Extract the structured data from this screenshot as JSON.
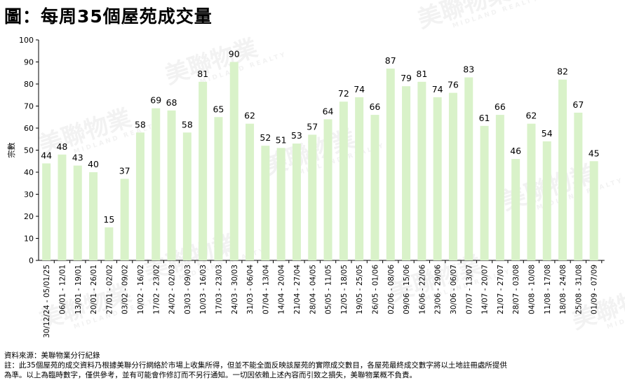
{
  "title": "圖：每周35個屋苑成交量",
  "watermark_text": "美聯物業",
  "watermark_subtext": "MIDLAND REALTY",
  "footer": {
    "source": "資料來源：美聯物業分行紀錄",
    "note_line1": "註：此35個屋苑的成交資料乃根據美聯分行網絡於市場上收集所得，但並不能全面反映該屋苑的實際成交數目，各屋苑最終成交數字將以土地註冊處所提供",
    "note_line2": "為準。以上為臨時數字，僅供參考，並有可能會作修訂而不另行通知。一切因依賴上述內容而引致之損失，美聯物業概不負責。"
  },
  "chart_data": {
    "type": "bar",
    "ylabel": "宗數",
    "xlabel": "",
    "ylim": [
      0,
      100
    ],
    "yticks": [
      0,
      10,
      20,
      30,
      40,
      50,
      60,
      70,
      80,
      90,
      100
    ],
    "bar_color": "#d9f2c9",
    "grid": false,
    "categories": [
      "30/12/24 - 05/01/25",
      "06/01 - 12/01",
      "13/01 - 19/01",
      "20/01 - 26/01",
      "27/01 - 02/02",
      "03/02 - 09/02",
      "10/02 - 16/02",
      "17/02 - 23/02",
      "24/02 - 02/03",
      "03/03 - 09/03",
      "10/03 - 16/03",
      "17/03 - 23/03",
      "24/03 - 30/03",
      "31/03 - 06/04",
      "07/04 - 13/04",
      "14/04 - 20/04",
      "21/04 - 27/04",
      "28/04 - 04/05",
      "05/05 - 11/05",
      "12/05 - 18/05",
      "19/05 - 25/05",
      "26/05 - 01/06",
      "02/06 - 08/06",
      "09/06 - 15/06",
      "16/06 - 22/06",
      "23/06 - 29/06",
      "30/06 - 06/07",
      "07/07 - 13/07",
      "14/07 - 20/07",
      "21/07 - 27/07",
      "28/07 - 03/08",
      "04/08 - 10/08",
      "11/08 - 17/08",
      "18/08 - 24/08",
      "25/08 - 31/08",
      "01/09 - 07/09"
    ],
    "values": [
      44,
      48,
      43,
      40,
      15,
      37,
      58,
      69,
      68,
      58,
      81,
      65,
      90,
      62,
      52,
      51,
      53,
      57,
      64,
      72,
      74,
      66,
      87,
      79,
      81,
      74,
      76,
      83,
      61,
      66,
      46,
      62,
      54,
      82,
      67,
      45
    ]
  }
}
